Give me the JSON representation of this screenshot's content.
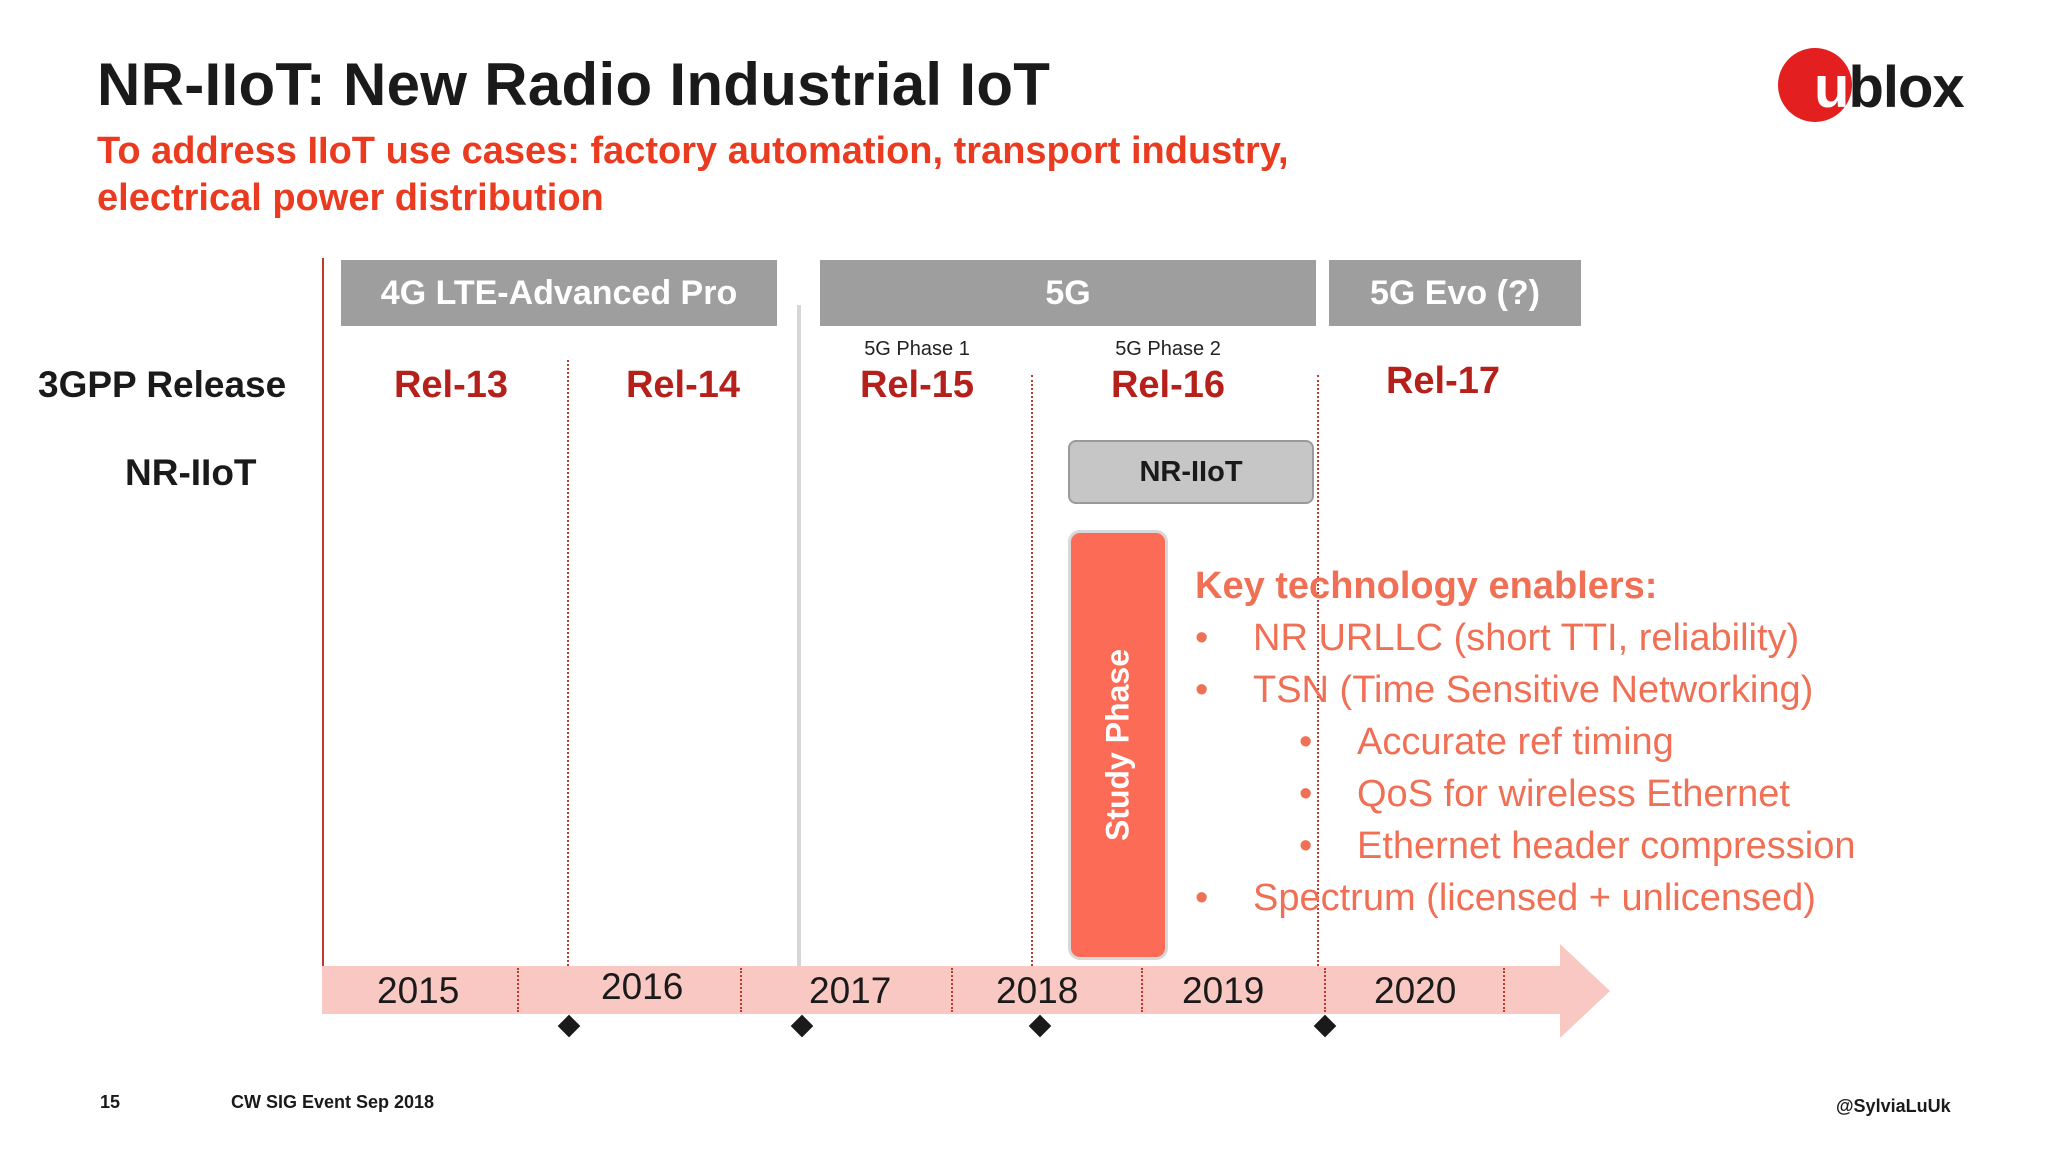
{
  "header": {
    "title": "NR-IIoT: New Radio Industrial IoT",
    "subtitle_line1": "To address IIoT use cases:  factory automation, transport industry,",
    "subtitle_line2": "electrical power distribution",
    "logo_text": "ublox",
    "logo_initial": "u",
    "logo_rest": "blox"
  },
  "eras": {
    "lte": "4G LTE-Advanced Pro",
    "fiveg": "5G",
    "evo": "5G Evo (?)"
  },
  "rows": {
    "release_label": "3GPP Release",
    "nriiot_label": "NR-IIoT"
  },
  "releases": {
    "rel13": "Rel-13",
    "rel14": "Rel-14",
    "rel15": "Rel-15",
    "rel16": "Rel-16",
    "rel17": "Rel-17",
    "phase1": "5G Phase 1",
    "phase2": "5G Phase 2"
  },
  "bars": {
    "nriiot": "NR-IIoT",
    "study": "Study Phase"
  },
  "enablers": {
    "heading": "Key technology enablers:",
    "bullet": "•",
    "items": [
      "NR URLLC (short TTI, reliability)",
      "TSN (Time Sensitive Networking)",
      "Accurate ref timing",
      "QoS for wireless Ethernet",
      "Ethernet header compression",
      "Spectrum (licensed + unlicensed)"
    ]
  },
  "years": [
    "2015",
    "2016",
    "2017",
    "2018",
    "2019",
    "2020"
  ],
  "footer": {
    "page": "15",
    "event": "CW SIG Event Sep 2018",
    "handle": "@SylviaLuUk"
  },
  "colors": {
    "accent_red": "#ea3a1f",
    "release_red": "#b5201a",
    "era_gray": "#9e9e9e",
    "study_orange": "#fb6b55",
    "enabler_text": "#f07056",
    "timeline_pink": "#f9c8c2"
  }
}
